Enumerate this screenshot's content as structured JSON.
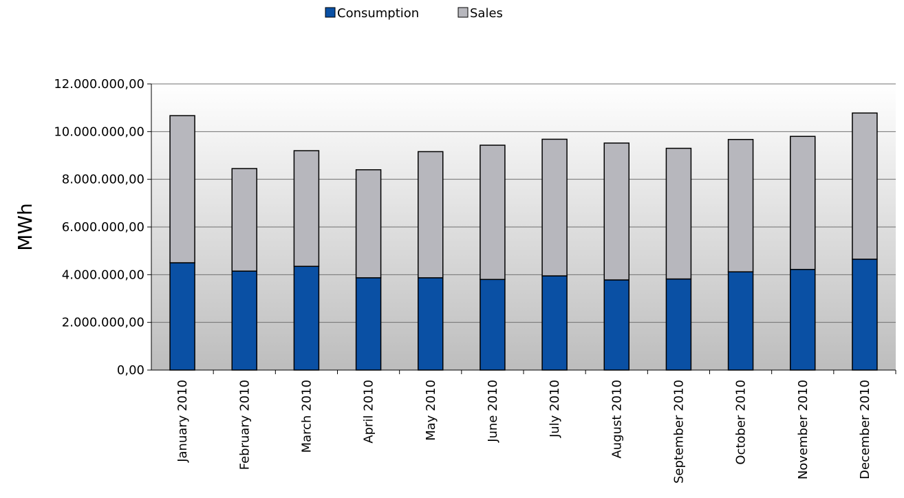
{
  "chart_data": {
    "type": "bar",
    "stacked": true,
    "title": "",
    "xlabel": "",
    "ylabel": "MWh",
    "ylim": [
      0,
      12000000
    ],
    "yticks": [
      0,
      2000000,
      4000000,
      6000000,
      8000000,
      10000000,
      12000000
    ],
    "ytick_labels": [
      "0,00",
      "2.000.000,00",
      "4.000.000,00",
      "6.000.000,00",
      "8.000.000,00",
      "10.000.000,00",
      "12.000.000,00"
    ],
    "grid": true,
    "legend_position": "top-center",
    "categories": [
      "January 2010",
      "February 2010",
      "March 2010",
      "April 2010",
      "May 2010",
      "June 2010",
      "July 2010",
      "August 2010",
      "September 2010",
      "October 2010",
      "November 2010",
      "December 2010"
    ],
    "series": [
      {
        "name": "Consumption",
        "color": "#0a50a4",
        "values": [
          4500000,
          4150000,
          4350000,
          3870000,
          3870000,
          3800000,
          3950000,
          3780000,
          3820000,
          4120000,
          4220000,
          4650000
        ]
      },
      {
        "name": "Sales",
        "color": "#b7b7bd",
        "values": [
          6170000,
          4300000,
          4850000,
          4530000,
          5290000,
          5630000,
          5730000,
          5740000,
          5480000,
          5550000,
          5580000,
          6130000
        ]
      }
    ]
  }
}
